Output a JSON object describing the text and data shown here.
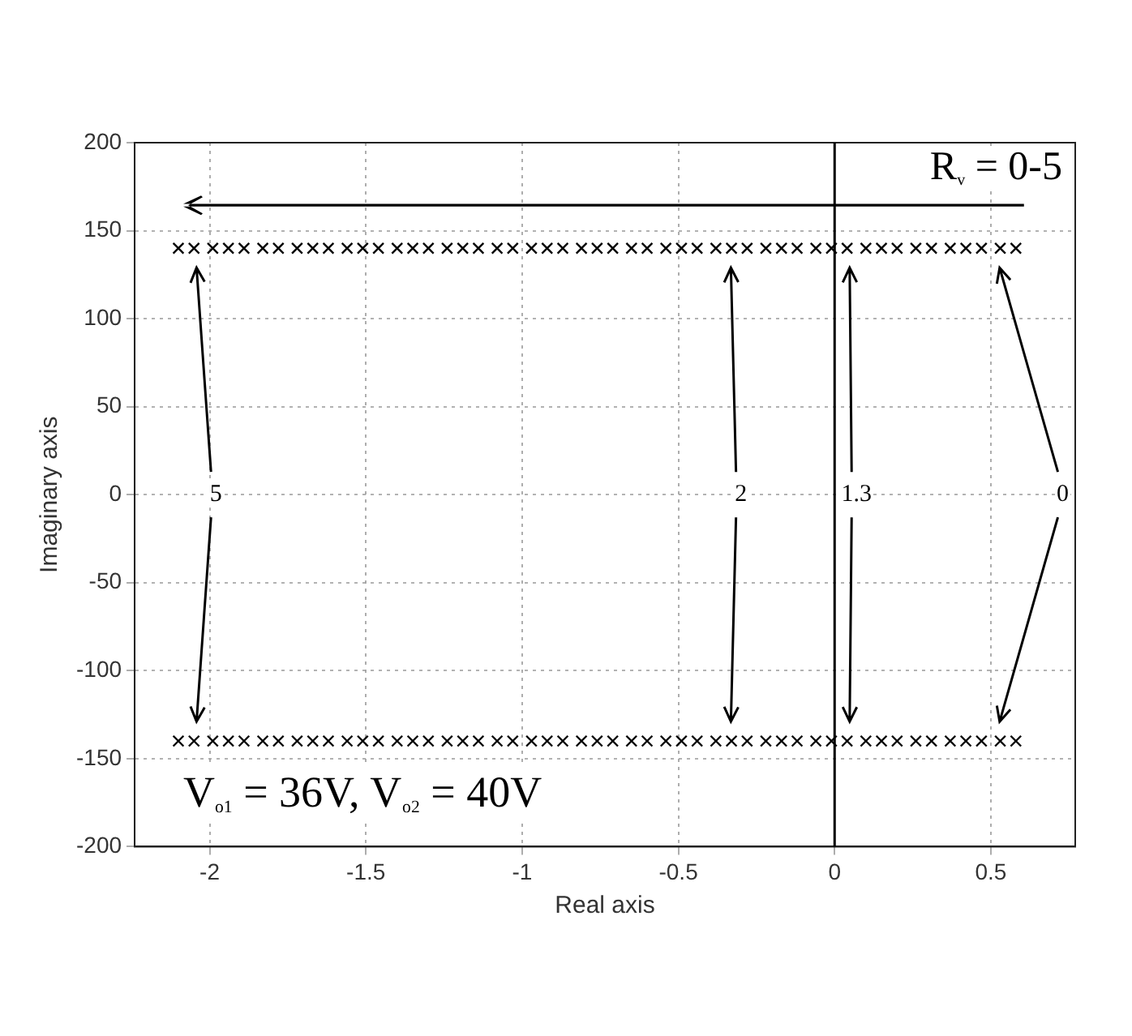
{
  "chart_data": {
    "type": "scatter",
    "xlabel": "Real axis",
    "ylabel": "Imaginary axis",
    "x": [
      -2.1,
      -2.05,
      -1.99,
      -1.94,
      -1.89,
      -1.83,
      -1.78,
      -1.72,
      -1.67,
      -1.62,
      -1.56,
      -1.51,
      -1.46,
      -1.4,
      -1.35,
      -1.3,
      -1.24,
      -1.19,
      -1.14,
      -1.08,
      -1.03,
      -0.97,
      -0.92,
      -0.87,
      -0.81,
      -0.76,
      -0.71,
      -0.65,
      -0.6,
      -0.54,
      -0.49,
      -0.44,
      -0.38,
      -0.33,
      -0.28,
      -0.22,
      -0.17,
      -0.12,
      -0.06,
      -0.01,
      0.04,
      0.1,
      0.15,
      0.2,
      0.26,
      0.31,
      0.37,
      0.42,
      0.47,
      0.53,
      0.58
    ],
    "series": [
      {
        "color": "#000000",
        "values": [
          140,
          140,
          140,
          140,
          140,
          140,
          140,
          140,
          140,
          140,
          140,
          140,
          140,
          140,
          140,
          140,
          140,
          140,
          140,
          140,
          140,
          140,
          140,
          140,
          140,
          140,
          140,
          140,
          140,
          140,
          140,
          140,
          140,
          140,
          140,
          140,
          140,
          140,
          140,
          140,
          140,
          140,
          140,
          140,
          140,
          140,
          140,
          140,
          140,
          140,
          140
        ]
      },
      {
        "color": "#000000",
        "values": [
          -140,
          -140,
          -140,
          -140,
          -140,
          -140,
          -140,
          -140,
          -140,
          -140,
          -140,
          -140,
          -140,
          -140,
          -140,
          -140,
          -140,
          -140,
          -140,
          -140,
          -140,
          -140,
          -140,
          -140,
          -140,
          -140,
          -140,
          -140,
          -140,
          -140,
          -140,
          -140,
          -140,
          -140,
          -140,
          -140,
          -140,
          -140,
          -140,
          -140,
          -140,
          -140,
          -140,
          -140,
          -140,
          -140,
          -140,
          -140,
          -140,
          -140,
          -140
        ]
      }
    ],
    "marker": "cross",
    "grid": true,
    "legend": false,
    "xlim": [
      -2.24,
      0.77
    ],
    "xticks": [
      -2,
      -1.5,
      -1,
      -0.5,
      0,
      0.5
    ],
    "ylim": [
      -200,
      200
    ],
    "yticks": [
      -200,
      -150,
      -100,
      -50,
      0,
      50,
      100,
      150,
      200
    ],
    "ref_lines": [
      {
        "axis": "x",
        "value": 0,
        "color": "#000000"
      }
    ],
    "annotations": [
      "R$_{v}$ = 0-5",
      {
        "text": "5",
        "x": -1.98,
        "y": 0
      },
      {
        "text": "2",
        "x": -0.3,
        "y": 0
      },
      {
        "text": "1.3",
        "x": 0.07,
        "y": 0
      },
      {
        "text": "0",
        "x": 0.73,
        "y": 0
      },
      "V$_{o1}$ = 36V, V$_{o2}$ = 40V"
    ]
  }
}
